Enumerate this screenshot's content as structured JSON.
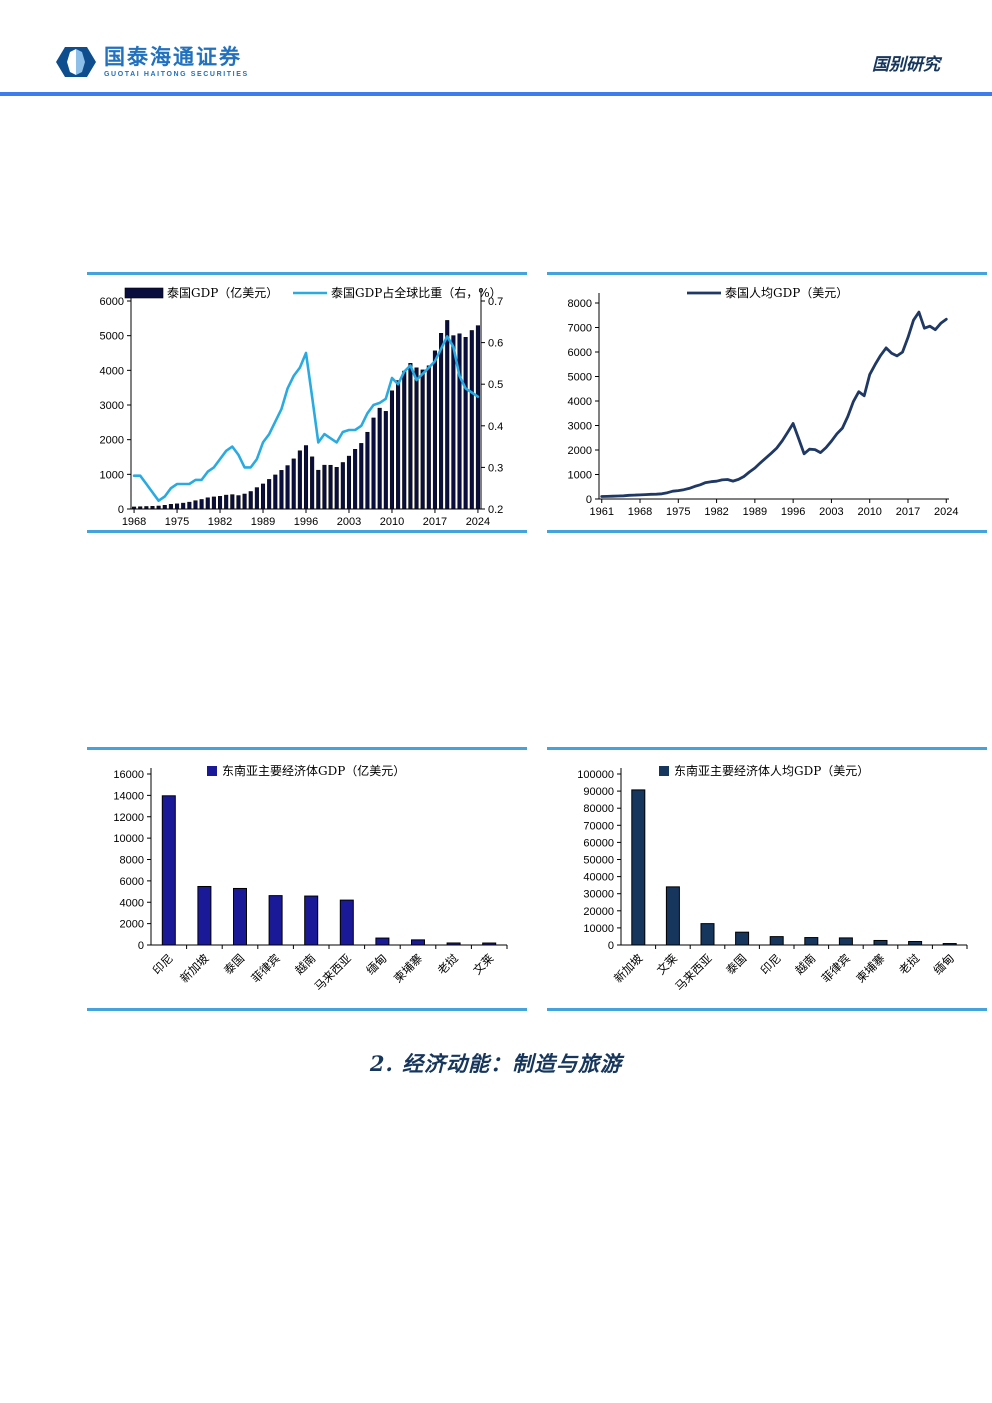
{
  "page": {
    "background": "#FFFFFF"
  },
  "header": {
    "brand": {
      "name_cn": "国泰海通证券",
      "name_en": "GUOTAI HAITONG SECURITIES"
    },
    "right_label": "国别研究"
  },
  "section": {
    "title": "2. 经济动能：制造与旅游"
  },
  "colors": {
    "header_rule": "#3C7CEC",
    "chart_border": "#44A3DC",
    "brand_blue": "#2171BE",
    "logo_dark": "#0E4E8E",
    "logo_light": "#8CC0E8",
    "dark_navy_text": "#16365C"
  },
  "chart_data": [
    {
      "type": "bar+line",
      "legend_bar": "泰国GDP（亿美元）",
      "legend_line": "泰国GDP占全球比重（右，%）",
      "bar_color": "#0A0E3F",
      "line_color": "#29ABE2",
      "x_start": 1968,
      "x_end": 2024,
      "x_ticks": [
        1968,
        1975,
        1982,
        1989,
        1996,
        2003,
        2010,
        2017,
        2024
      ],
      "left_axis": {
        "min": 0,
        "max": 6000,
        "step": 1000
      },
      "right_axis": {
        "min": 0.2,
        "max": 0.7,
        "step": 0.1
      },
      "bar_values": [
        60,
        67,
        73,
        78,
        87,
        107,
        136,
        149,
        170,
        198,
        240,
        275,
        324,
        349,
        366,
        401,
        415,
        388,
        433,
        505,
        618,
        723,
        854,
        983,
        1115,
        1253,
        1446,
        1680,
        1831,
        1505,
        1120,
        1265,
        1263,
        1203,
        1342,
        1526,
        1723,
        1893,
        2215,
        2627,
        2910,
        2817,
        3411,
        3706,
        3979,
        4203,
        4073,
        4013,
        4133,
        4563,
        5069,
        5440,
        5002,
        5055,
        4953,
        5150,
        5290
      ],
      "line_values": [
        0.28,
        0.28,
        0.26,
        0.24,
        0.22,
        0.23,
        0.25,
        0.26,
        0.26,
        0.26,
        0.27,
        0.27,
        0.29,
        0.3,
        0.32,
        0.34,
        0.35,
        0.33,
        0.3,
        0.3,
        0.32,
        0.36,
        0.38,
        0.41,
        0.44,
        0.49,
        0.52,
        0.54,
        0.575,
        0.47,
        0.36,
        0.38,
        0.37,
        0.36,
        0.385,
        0.39,
        0.39,
        0.4,
        0.43,
        0.45,
        0.455,
        0.465,
        0.515,
        0.5,
        0.53,
        0.545,
        0.51,
        0.525,
        0.54,
        0.555,
        0.585,
        0.615,
        0.59,
        0.52,
        0.49,
        0.48,
        0.47
      ]
    },
    {
      "type": "line",
      "legend": "泰国人均GDP（美元）",
      "line_color": "#1F3864",
      "x_start": 1961,
      "x_end": 2024,
      "x_ticks": [
        1961,
        1968,
        1975,
        1982,
        1989,
        1996,
        2003,
        2010,
        2017,
        2024
      ],
      "y_axis": {
        "min": 0,
        "max": 8000,
        "step": 1000
      },
      "values": [
        101,
        108,
        115,
        122,
        130,
        150,
        161,
        169,
        180,
        192,
        197,
        213,
        257,
        318,
        341,
        380,
        434,
        515,
        578,
        668,
        706,
        726,
        781,
        794,
        730,
        801,
        918,
        1102,
        1267,
        1473,
        1671,
        1871,
        2078,
        2371,
        2724,
        3080,
        2468,
        1846,
        2033,
        2016,
        1893,
        2096,
        2359,
        2660,
        2894,
        3369,
        3973,
        4379,
        4213,
        5076,
        5492,
        5861,
        6168,
        5952,
        5840,
        5995,
        6594,
        7297,
        7630,
        6970,
        7055,
        6910,
        7170,
        7340
      ]
    },
    {
      "type": "bar",
      "legend": "东南亚主要经济体GDP（亿美元）",
      "bar_color": "#1A1A99",
      "y_axis": {
        "min": 0,
        "max": 16000,
        "step": 2000
      },
      "categories": [
        "印尼",
        "新加坡",
        "泰国",
        "菲律宾",
        "越南",
        "马来西亚",
        "缅甸",
        "柬埔寨",
        "老挝",
        "文莱"
      ],
      "values": [
        13960,
        5475,
        5290,
        4620,
        4580,
        4200,
        650,
        480,
        190,
        185
      ]
    },
    {
      "type": "bar",
      "legend": "东南亚主要经济体人均GDP（美元）",
      "bar_color": "#16365D",
      "y_axis": {
        "min": 0,
        "max": 100000,
        "step": 10000
      },
      "categories": [
        "新加坡",
        "文莱",
        "马来西亚",
        "泰国",
        "印尼",
        "越南",
        "菲律宾",
        "柬埔寨",
        "老挝",
        "缅甸"
      ],
      "values": [
        90700,
        34000,
        12500,
        7500,
        4900,
        4350,
        4150,
        2650,
        2050,
        850
      ]
    }
  ]
}
